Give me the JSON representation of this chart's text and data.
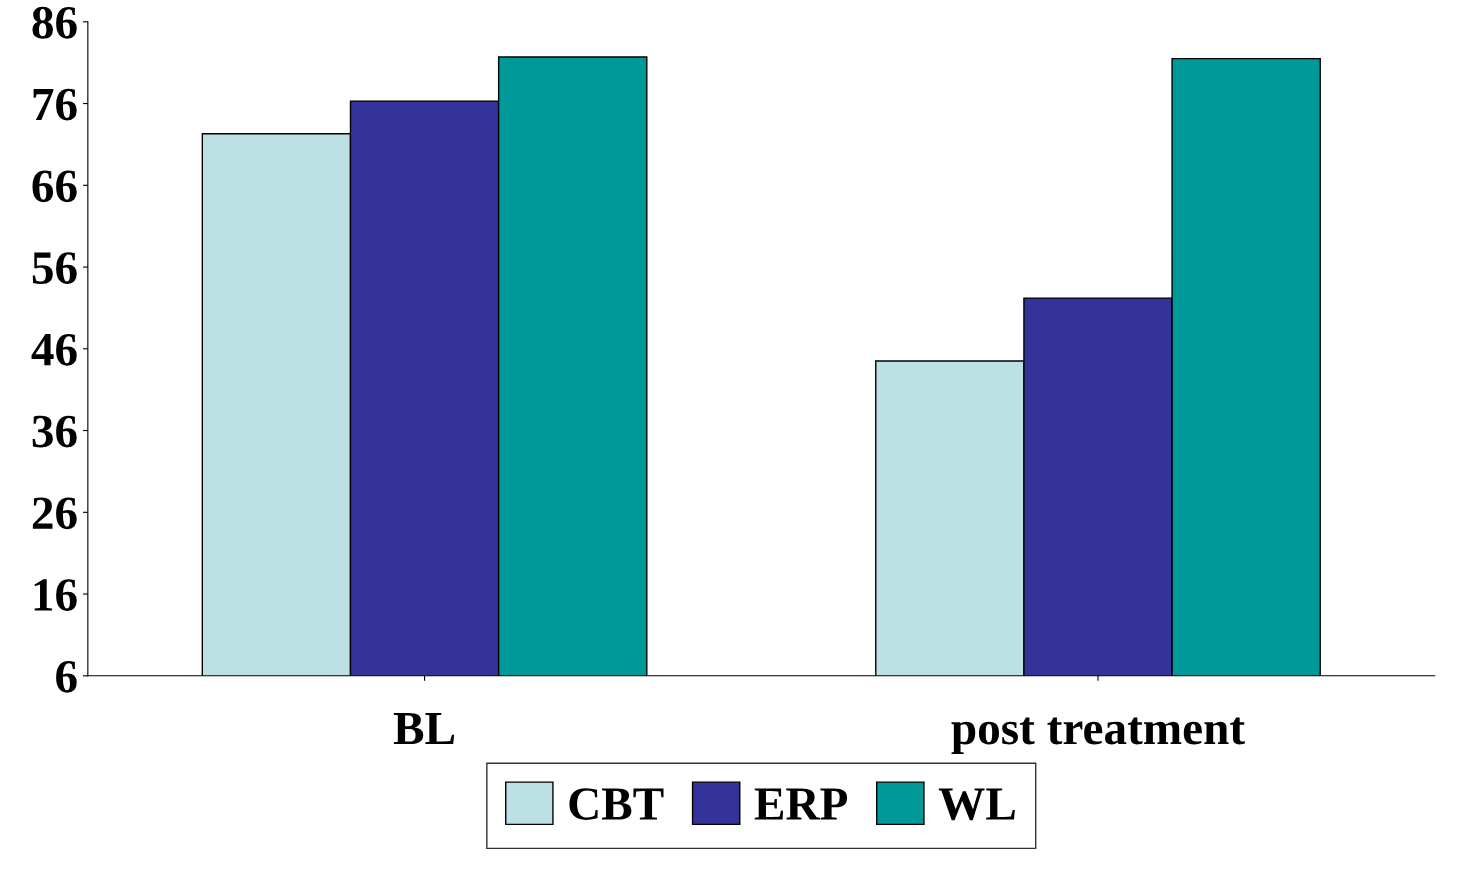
{
  "chart_data": {
    "type": "bar",
    "categories": [
      "BL",
      "post treatment"
    ],
    "series": [
      {
        "name": "CBT",
        "color": "#bce0e3",
        "values": [
          72.3,
          44.5
        ]
      },
      {
        "name": "ERP",
        "color": "#333399",
        "values": [
          76.3,
          52.2
        ]
      },
      {
        "name": "WL",
        "color": "#009999",
        "values": [
          81.7,
          81.5
        ]
      }
    ],
    "ylim": [
      6,
      86
    ],
    "yticks": [
      6,
      16,
      26,
      36,
      46,
      56,
      66,
      76,
      86
    ],
    "grid": false,
    "legend": "bottom"
  }
}
